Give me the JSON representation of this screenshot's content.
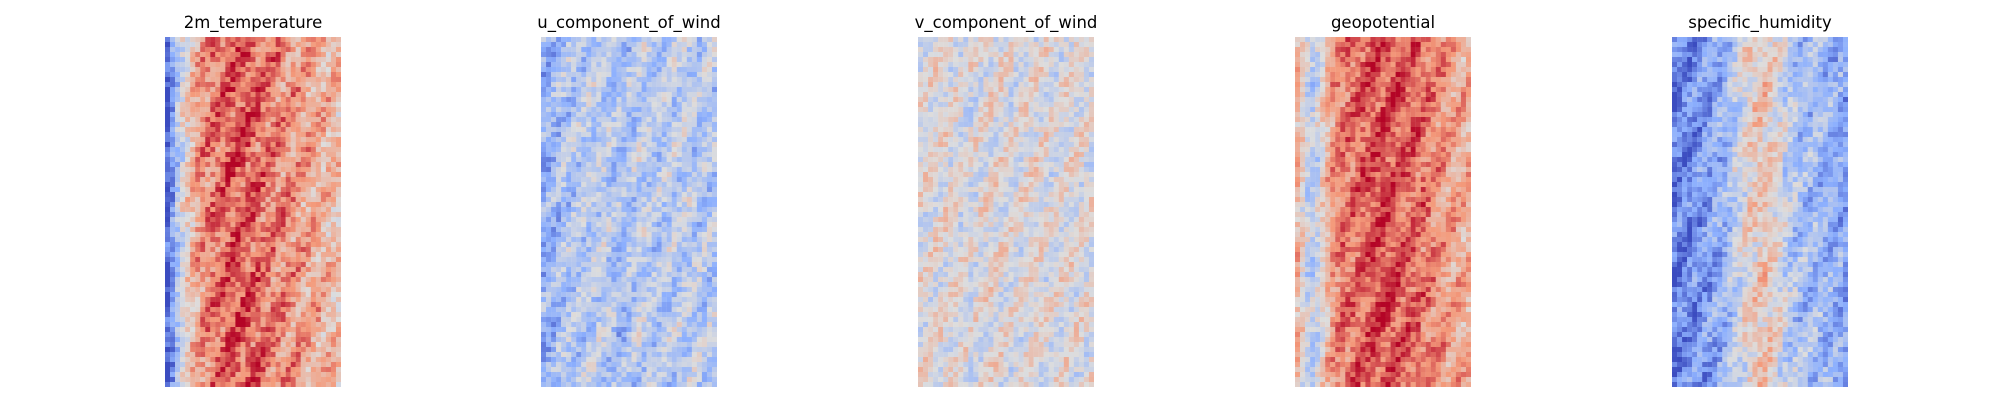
{
  "chart_data": [
    {
      "type": "heatmap",
      "title": "2m_temperature",
      "colormap": "coolwarm",
      "grid_rows": 70,
      "grid_cols": 35,
      "axes": "off",
      "column_profile": [
        -0.9,
        -0.6,
        -0.3,
        -0.05,
        0.15,
        0.3,
        0.4,
        0.5,
        0.55,
        0.6,
        0.62,
        0.65,
        0.68,
        0.7,
        0.72,
        0.72,
        0.7,
        0.68,
        0.65,
        0.62,
        0.6,
        0.58,
        0.55,
        0.52,
        0.5,
        0.48,
        0.45,
        0.42,
        0.4,
        0.38,
        0.35,
        0.32,
        0.3,
        0.28,
        0.25
      ],
      "noise": 0.25
    },
    {
      "type": "heatmap",
      "title": "u_component_of_wind",
      "colormap": "coolwarm",
      "grid_rows": 70,
      "grid_cols": 35,
      "axes": "off",
      "column_profile": [
        -0.45,
        -0.45,
        -0.4,
        -0.35,
        -0.3,
        -0.3,
        -0.28,
        -0.25,
        -0.25,
        -0.22,
        -0.2,
        -0.2,
        -0.22,
        -0.25,
        -0.3,
        -0.35,
        -0.35,
        -0.3,
        -0.25,
        -0.2,
        -0.2,
        -0.22,
        -0.25,
        -0.25,
        -0.25,
        -0.22,
        -0.2,
        -0.2,
        -0.2,
        -0.22,
        -0.25,
        -0.25,
        -0.25,
        -0.25,
        -0.25
      ],
      "noise": 0.25
    },
    {
      "type": "heatmap",
      "title": "v_component_of_wind",
      "colormap": "coolwarm",
      "grid_rows": 70,
      "grid_cols": 35,
      "axes": "off",
      "column_profile": [
        0.0,
        0.0,
        0.02,
        0.02,
        0.03,
        0.03,
        0.02,
        0.0,
        -0.02,
        -0.03,
        -0.03,
        -0.02,
        0.0,
        0.02,
        0.03,
        0.03,
        0.02,
        0.0,
        -0.02,
        -0.02,
        0.0,
        0.02,
        0.03,
        0.03,
        0.02,
        0.0,
        -0.02,
        -0.02,
        0.0,
        0.02,
        0.02,
        0.0,
        0.0,
        0.0,
        0.0
      ],
      "noise": 0.22
    },
    {
      "type": "heatmap",
      "title": "geopotential",
      "colormap": "coolwarm",
      "grid_rows": 70,
      "grid_cols": 35,
      "axes": "off",
      "column_profile": [
        0.3,
        0.1,
        -0.1,
        -0.2,
        -0.1,
        0.1,
        0.3,
        0.45,
        0.55,
        0.6,
        0.62,
        0.65,
        0.68,
        0.7,
        0.72,
        0.74,
        0.75,
        0.76,
        0.76,
        0.75,
        0.74,
        0.72,
        0.7,
        0.68,
        0.66,
        0.63,
        0.6,
        0.56,
        0.52,
        0.48,
        0.44,
        0.4,
        0.38,
        0.36,
        0.35
      ],
      "noise": 0.22
    },
    {
      "type": "heatmap",
      "title": "specific_humidity",
      "colormap": "coolwarm",
      "grid_rows": 70,
      "grid_cols": 35,
      "axes": "off",
      "column_profile": [
        -0.75,
        -0.72,
        -0.7,
        -0.68,
        -0.65,
        -0.62,
        -0.58,
        -0.55,
        -0.5,
        -0.45,
        -0.4,
        -0.3,
        -0.2,
        -0.1,
        0.0,
        0.1,
        0.15,
        0.2,
        0.2,
        0.15,
        0.05,
        -0.05,
        -0.15,
        -0.25,
        -0.3,
        -0.35,
        -0.35,
        -0.35,
        -0.38,
        -0.4,
        -0.42,
        -0.45,
        -0.48,
        -0.5,
        -0.55
      ],
      "noise": 0.25
    }
  ]
}
